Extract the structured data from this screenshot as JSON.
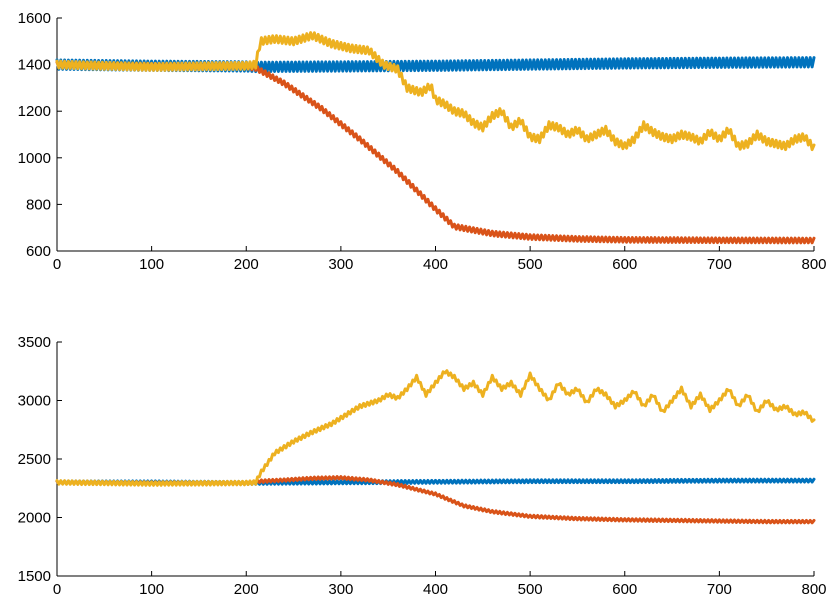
{
  "chart_data": [
    {
      "type": "line",
      "title": "",
      "xlabel": "",
      "ylabel": "",
      "xlim": [
        0,
        800
      ],
      "ylim": [
        600,
        1600
      ],
      "x_ticks": [
        0,
        100,
        200,
        300,
        400,
        500,
        600,
        700,
        800
      ],
      "y_ticks": [
        600,
        800,
        1000,
        1200,
        1400,
        1600
      ],
      "grid": false,
      "series": [
        {
          "color": "#0072BD",
          "x": [
            0,
            100,
            200,
            210,
            300,
            400,
            500,
            600,
            700,
            800
          ],
          "y": [
            1400,
            1395,
            1392,
            1390,
            1392,
            1395,
            1400,
            1405,
            1408,
            1410
          ],
          "oscillation": 20
        },
        {
          "color": "#D95319",
          "x": [
            0,
            100,
            200,
            210,
            240,
            280,
            320,
            360,
            400,
            420,
            460,
            500,
            550,
            600,
            700,
            800
          ],
          "y": [
            1400,
            1395,
            1392,
            1385,
            1320,
            1210,
            1080,
            940,
            780,
            705,
            675,
            660,
            652,
            648,
            646,
            645
          ],
          "oscillation": 10
        },
        {
          "color": "#EDB120",
          "x": [
            0,
            100,
            200,
            210,
            215,
            230,
            250,
            270,
            290,
            310,
            330,
            345,
            360,
            370,
            385,
            395,
            400,
            410,
            420,
            430,
            440,
            450,
            460,
            470,
            480,
            490,
            500,
            510,
            520,
            530,
            540,
            550,
            560,
            570,
            580,
            590,
            600,
            610,
            620,
            630,
            640,
            650,
            660,
            670,
            680,
            690,
            700,
            710,
            720,
            730,
            740,
            750,
            760,
            770,
            780,
            790,
            800
          ],
          "y": [
            1400,
            1390,
            1395,
            1400,
            1500,
            1510,
            1500,
            1525,
            1490,
            1470,
            1460,
            1400,
            1380,
            1300,
            1280,
            1310,
            1250,
            1230,
            1200,
            1190,
            1150,
            1130,
            1180,
            1200,
            1130,
            1160,
            1090,
            1080,
            1140,
            1130,
            1100,
            1120,
            1080,
            1100,
            1120,
            1070,
            1050,
            1080,
            1140,
            1110,
            1090,
            1080,
            1100,
            1090,
            1070,
            1110,
            1080,
            1120,
            1050,
            1060,
            1100,
            1070,
            1060,
            1050,
            1080,
            1090,
            1040
          ],
          "oscillation": 15
        }
      ]
    },
    {
      "type": "line",
      "title": "",
      "xlabel": "",
      "ylabel": "",
      "xlim": [
        0,
        800
      ],
      "ylim": [
        1500,
        3500
      ],
      "x_ticks": [
        0,
        100,
        200,
        300,
        400,
        500,
        600,
        700,
        800
      ],
      "y_ticks": [
        1500,
        2000,
        2500,
        3000,
        3500
      ],
      "grid": false,
      "series": [
        {
          "color": "#0072BD",
          "x": [
            0,
            100,
            200,
            300,
            400,
            500,
            600,
            700,
            800
          ],
          "y": [
            2300,
            2300,
            2295,
            2300,
            2305,
            2310,
            2310,
            2315,
            2315
          ],
          "oscillation": 12
        },
        {
          "color": "#D95319",
          "x": [
            0,
            100,
            200,
            215,
            240,
            270,
            300,
            330,
            360,
            400,
            430,
            460,
            500,
            550,
            600,
            650,
            700,
            750,
            800
          ],
          "y": [
            2300,
            2295,
            2295,
            2310,
            2320,
            2335,
            2340,
            2320,
            2280,
            2200,
            2100,
            2050,
            2010,
            1990,
            1980,
            1975,
            1970,
            1965,
            1965
          ],
          "oscillation": 10
        },
        {
          "color": "#EDB120",
          "x": [
            0,
            100,
            200,
            210,
            215,
            230,
            250,
            270,
            290,
            300,
            310,
            320,
            340,
            350,
            360,
            370,
            380,
            390,
            400,
            410,
            420,
            430,
            440,
            450,
            460,
            470,
            480,
            490,
            500,
            510,
            520,
            530,
            540,
            550,
            560,
            570,
            580,
            590,
            600,
            610,
            620,
            630,
            640,
            650,
            660,
            670,
            680,
            690,
            700,
            710,
            720,
            730,
            740,
            750,
            760,
            770,
            780,
            790,
            800
          ],
          "y": [
            2300,
            2290,
            2295,
            2300,
            2380,
            2550,
            2650,
            2730,
            2800,
            2850,
            2900,
            2950,
            3000,
            3050,
            3020,
            3100,
            3200,
            3050,
            3150,
            3250,
            3200,
            3100,
            3150,
            3050,
            3200,
            3100,
            3150,
            3050,
            3220,
            3100,
            3000,
            3150,
            3050,
            3100,
            2980,
            3100,
            3050,
            2950,
            3000,
            3080,
            2950,
            3050,
            2900,
            3000,
            3100,
            2950,
            3050,
            2920,
            3000,
            3100,
            2950,
            3050,
            2900,
            3000,
            2920,
            2950,
            2880,
            2900,
            2820
          ],
          "oscillation": 15
        }
      ]
    }
  ]
}
